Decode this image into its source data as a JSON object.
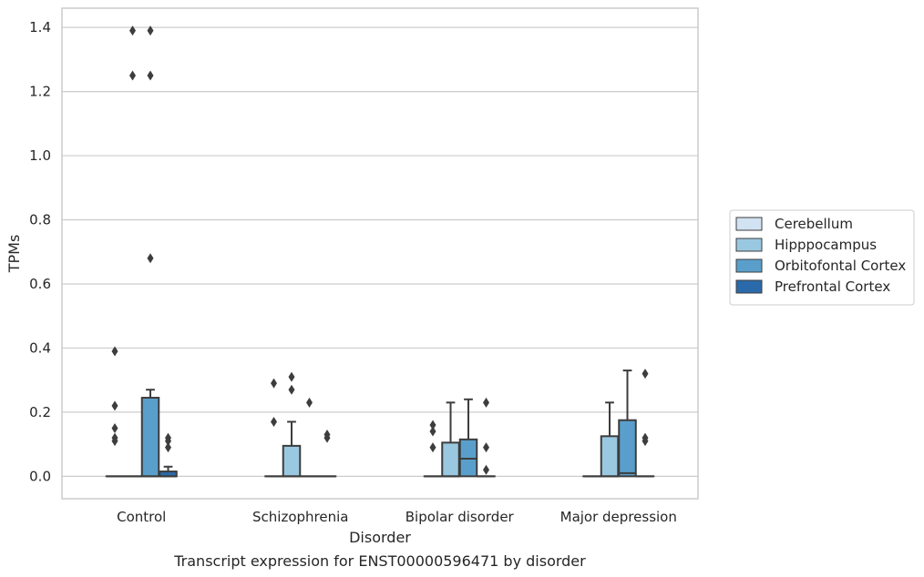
{
  "chart_data": {
    "type": "box",
    "xlabel": "Disorder",
    "ylabel": "TPMs",
    "caption": "Transcript expression for ENST00000596471 by disorder",
    "categories": [
      "Control",
      "Schizophrenia",
      "Bipolar disorder",
      "Major depression"
    ],
    "ylim": [
      -0.07,
      1.46
    ],
    "yticks": [
      0.0,
      0.2,
      0.4,
      0.6,
      0.8,
      1.0,
      1.2,
      1.4
    ],
    "ytick_labels": [
      "0.0",
      "0.2",
      "0.4",
      "0.6",
      "0.8",
      "1.0",
      "1.2",
      "1.4"
    ],
    "grid": true,
    "legend_position": "right",
    "series": [
      {
        "name": "Cerebellum",
        "color": "#d1e2f2",
        "boxes": [
          {
            "q1": 0,
            "median": 0,
            "q3": 0,
            "whisker_low": 0,
            "whisker_high": 0,
            "outliers": [
              0.11,
              0.12,
              0.15,
              0.22,
              0.39
            ]
          },
          {
            "q1": 0,
            "median": 0,
            "q3": 0,
            "whisker_low": 0,
            "whisker_high": 0,
            "outliers": [
              0.17,
              0.29
            ]
          },
          {
            "q1": 0,
            "median": 0,
            "q3": 0,
            "whisker_low": 0,
            "whisker_high": 0,
            "outliers": [
              0.09,
              0.14,
              0.16
            ]
          },
          {
            "q1": 0,
            "median": 0,
            "q3": 0,
            "whisker_low": 0,
            "whisker_high": 0,
            "outliers": []
          }
        ]
      },
      {
        "name": "Hipppocampus",
        "color": "#9ac8e0",
        "boxes": [
          {
            "q1": 0,
            "median": 0,
            "q3": 0,
            "whisker_low": 0,
            "whisker_high": 0,
            "outliers": [
              1.25,
              1.39
            ]
          },
          {
            "q1": 0,
            "median": 0,
            "q3": 0.095,
            "whisker_low": 0,
            "whisker_high": 0.17,
            "outliers": [
              0.27,
              0.31
            ]
          },
          {
            "q1": 0,
            "median": 0,
            "q3": 0.105,
            "whisker_low": 0,
            "whisker_high": 0.23,
            "outliers": []
          },
          {
            "q1": 0,
            "median": 0,
            "q3": 0.125,
            "whisker_low": 0,
            "whisker_high": 0.23,
            "outliers": []
          }
        ]
      },
      {
        "name": "Orbitofontal Cortex",
        "color": "#5a9fcb",
        "boxes": [
          {
            "q1": 0,
            "median": 0,
            "q3": 0.245,
            "whisker_low": 0,
            "whisker_high": 0.27,
            "outliers": [
              0.68,
              1.25,
              1.39
            ]
          },
          {
            "q1": 0,
            "median": 0,
            "q3": 0,
            "whisker_low": 0,
            "whisker_high": 0,
            "outliers": [
              0.23
            ]
          },
          {
            "q1": 0,
            "median": 0.055,
            "q3": 0.115,
            "whisker_low": 0,
            "whisker_high": 0.24,
            "outliers": []
          },
          {
            "q1": 0,
            "median": 0.01,
            "q3": 0.175,
            "whisker_low": 0,
            "whisker_high": 0.33,
            "outliers": []
          }
        ]
      },
      {
        "name": "Prefrontal Cortex",
        "color": "#2b6aaa",
        "boxes": [
          {
            "q1": 0,
            "median": 0,
            "q3": 0.015,
            "whisker_low": 0,
            "whisker_high": 0.03,
            "outliers": [
              0.09,
              0.11,
              0.12
            ]
          },
          {
            "q1": 0,
            "median": 0,
            "q3": 0,
            "whisker_low": 0,
            "whisker_high": 0,
            "outliers": [
              0.12,
              0.13
            ]
          },
          {
            "q1": 0,
            "median": 0,
            "q3": 0,
            "whisker_low": 0,
            "whisker_high": 0,
            "outliers": [
              0.02,
              0.09,
              0.23
            ]
          },
          {
            "q1": 0,
            "median": 0,
            "q3": 0,
            "whisker_low": 0,
            "whisker_high": 0,
            "outliers": [
              0.11,
              0.12,
              0.32
            ]
          }
        ]
      }
    ]
  }
}
